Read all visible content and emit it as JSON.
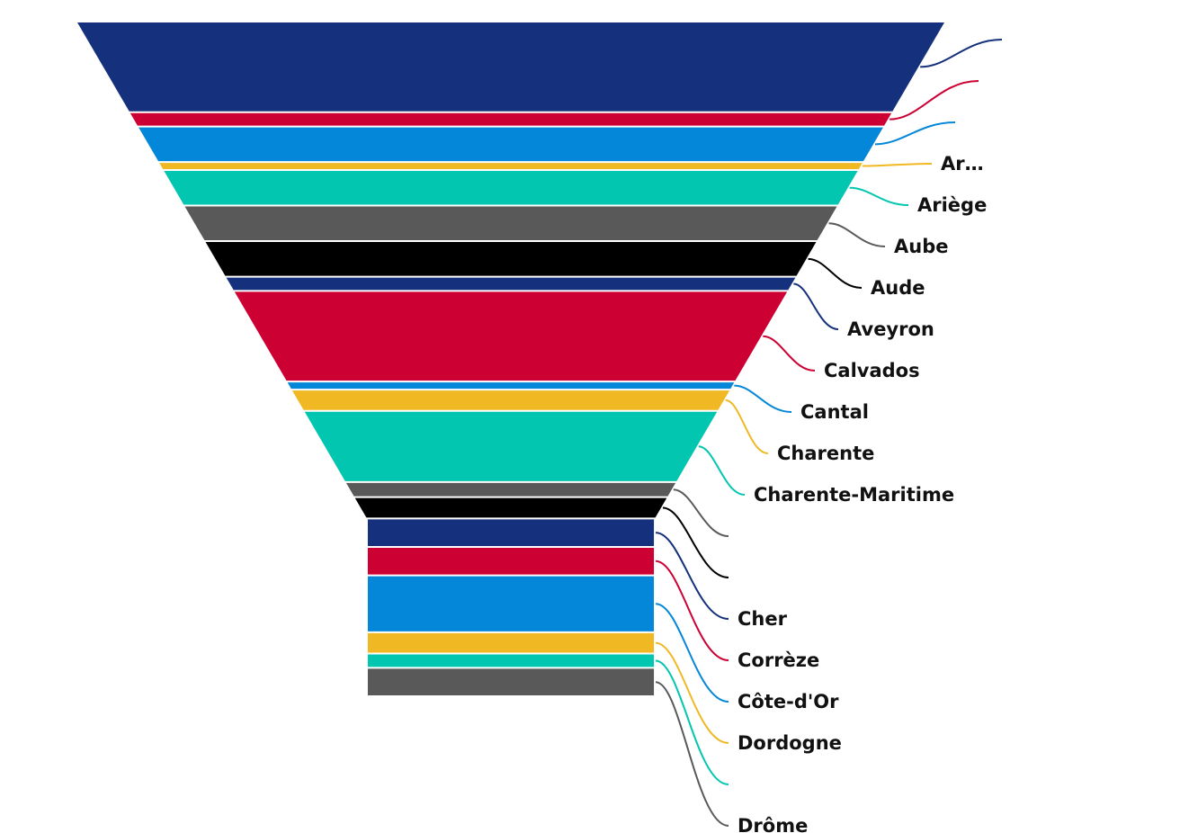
{
  "chart_data": {
    "type": "funnel",
    "title": "",
    "neck_fraction": 0.33,
    "grid": false,
    "legend": "none",
    "segments": [
      {
        "name": "",
        "label": "",
        "value": 100,
        "color": "#15307c"
      },
      {
        "name": "",
        "label": "",
        "value": 14,
        "color": "#cc0033"
      },
      {
        "name": "",
        "label": "",
        "value": 38,
        "color": "#0487d8"
      },
      {
        "name": "",
        "label": "Ar…",
        "value": 7,
        "color": "#f0b823"
      },
      {
        "name": "",
        "label": "Ariège",
        "value": 38,
        "color": "#02c6b0"
      },
      {
        "name": "",
        "label": "Aube",
        "value": 38,
        "color": "#595959"
      },
      {
        "name": "",
        "label": "Aude",
        "value": 38,
        "color": "#000000"
      },
      {
        "name": "",
        "label": "Aveyron",
        "value": 14,
        "color": "#15307c"
      },
      {
        "name": "",
        "label": "Calvados",
        "value": 100,
        "color": "#cc0033"
      },
      {
        "name": "",
        "label": "Cantal",
        "value": 7,
        "color": "#0487d8"
      },
      {
        "name": "",
        "label": "Charente",
        "value": 22,
        "color": "#f0b823"
      },
      {
        "name": "",
        "label": "Charente-Maritime",
        "value": 78,
        "color": "#02c6b0"
      },
      {
        "name": "Charente-Maritime",
        "label": "",
        "value": 15,
        "color": "#595959"
      },
      {
        "name": "Cher",
        "label": "",
        "value": 22,
        "color": "#000000"
      },
      {
        "name": "Corrèze",
        "label": "Cher",
        "value": 30,
        "color": "#15307c"
      },
      {
        "name": "Côte-d'Or",
        "label": "Corrèze",
        "value": 30,
        "color": "#cc0033"
      },
      {
        "name": "Dordogne",
        "label": "Côte-d'Or",
        "value": 62,
        "color": "#0487d8"
      },
      {
        "name": "Drôme",
        "label": "Dordogne",
        "value": 22,
        "color": "#f0b823"
      },
      {
        "name": "",
        "label": "",
        "value": 14,
        "color": "#02c6b0"
      },
      {
        "name": "",
        "label": "Drôme",
        "value": 30,
        "color": "#595959"
      }
    ]
  }
}
